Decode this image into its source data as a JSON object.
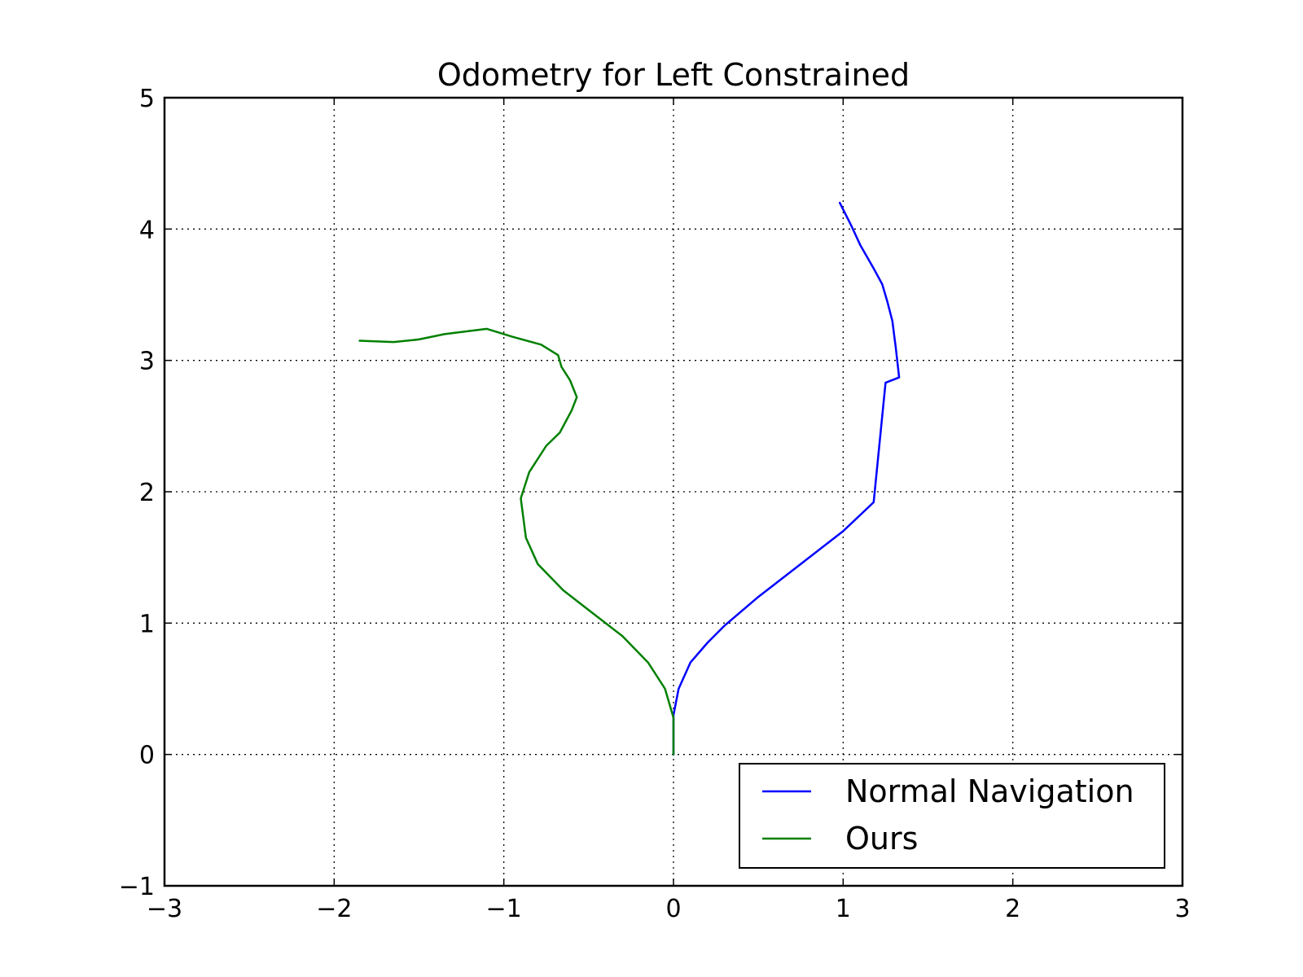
{
  "chart_data": {
    "type": "line",
    "title": "Odometry for Left Constrained",
    "xlabel": "",
    "ylabel": "",
    "xlim": [
      -3,
      3
    ],
    "ylim": [
      -1,
      5
    ],
    "xticks": [
      -3,
      -2,
      -1,
      0,
      1,
      2,
      3
    ],
    "yticks": [
      -1,
      0,
      1,
      2,
      3,
      4,
      5
    ],
    "xtick_labels": [
      "−3",
      "−2",
      "−1",
      "0",
      "1",
      "2",
      "3"
    ],
    "ytick_labels": [
      "−1",
      "0",
      "1",
      "2",
      "3",
      "4",
      "5"
    ],
    "grid": true,
    "legend_position": "lower-right",
    "series": [
      {
        "name": "Normal Navigation",
        "color": "#0000ff",
        "points": [
          [
            0.0,
            0.0
          ],
          [
            0.0,
            0.15
          ],
          [
            0.0,
            0.3
          ],
          [
            0.03,
            0.5
          ],
          [
            0.1,
            0.7
          ],
          [
            0.2,
            0.85
          ],
          [
            0.3,
            0.98
          ],
          [
            0.5,
            1.2
          ],
          [
            0.75,
            1.45
          ],
          [
            1.0,
            1.7
          ],
          [
            1.18,
            1.92
          ],
          [
            1.25,
            2.83
          ],
          [
            1.33,
            2.87
          ],
          [
            1.31,
            3.1
          ],
          [
            1.3,
            3.2
          ],
          [
            1.29,
            3.3
          ],
          [
            1.26,
            3.45
          ],
          [
            1.23,
            3.58
          ],
          [
            1.18,
            3.7
          ],
          [
            1.1,
            3.88
          ],
          [
            1.05,
            4.02
          ],
          [
            0.98,
            4.2
          ]
        ]
      },
      {
        "name": "Ours",
        "color": "#008000",
        "points": [
          [
            0.0,
            0.0
          ],
          [
            0.0,
            0.15
          ],
          [
            0.0,
            0.28
          ],
          [
            -0.05,
            0.5
          ],
          [
            -0.15,
            0.7
          ],
          [
            -0.3,
            0.9
          ],
          [
            -0.5,
            1.1
          ],
          [
            -0.65,
            1.25
          ],
          [
            -0.8,
            1.45
          ],
          [
            -0.87,
            1.65
          ],
          [
            -0.9,
            1.95
          ],
          [
            -0.85,
            2.15
          ],
          [
            -0.75,
            2.35
          ],
          [
            -0.67,
            2.45
          ],
          [
            -0.6,
            2.62
          ],
          [
            -0.57,
            2.72
          ],
          [
            -0.61,
            2.85
          ],
          [
            -0.66,
            2.95
          ],
          [
            -0.68,
            3.04
          ],
          [
            -0.78,
            3.12
          ],
          [
            -0.95,
            3.18
          ],
          [
            -1.1,
            3.24
          ],
          [
            -1.35,
            3.2
          ],
          [
            -1.5,
            3.16
          ],
          [
            -1.65,
            3.14
          ],
          [
            -1.85,
            3.15
          ]
        ]
      }
    ]
  }
}
